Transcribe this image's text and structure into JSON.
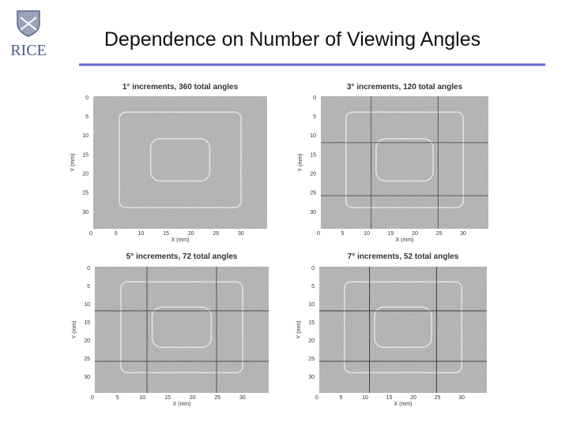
{
  "header": {
    "logo": "RICE",
    "title": "Dependence on Number of Viewing Angles"
  },
  "panels": [
    {
      "title": "1° increments, 360 total angles",
      "x_label": "X (mm)",
      "y_label": "Y (mm)",
      "x_ticks": [
        0,
        5,
        10,
        15,
        20,
        25,
        30
      ],
      "y_ticks": [
        0,
        5,
        10,
        15,
        20,
        25,
        30
      ]
    },
    {
      "title": "3° increments, 120 total angles",
      "x_label": "X (mm)",
      "y_label": "Y (mm)",
      "x_ticks": [
        0,
        5,
        10,
        15,
        20,
        25,
        30
      ],
      "y_ticks": [
        0,
        5,
        10,
        15,
        20,
        25,
        30
      ]
    },
    {
      "title": "5° increments, 72 total angles",
      "x_label": "X (mm)",
      "y_label": "Y (mm)",
      "x_ticks": [
        0,
        5,
        10,
        15,
        20,
        25,
        30
      ],
      "y_ticks": [
        0,
        5,
        10,
        15,
        20,
        25,
        30
      ]
    },
    {
      "title": "7° increments, 52 total angles",
      "x_label": "X (mm)",
      "y_label": "Y (mm)",
      "x_ticks": [
        0,
        5,
        10,
        15,
        20,
        25,
        30
      ],
      "y_ticks": [
        0,
        5,
        10,
        15,
        20,
        25,
        30
      ]
    }
  ]
}
